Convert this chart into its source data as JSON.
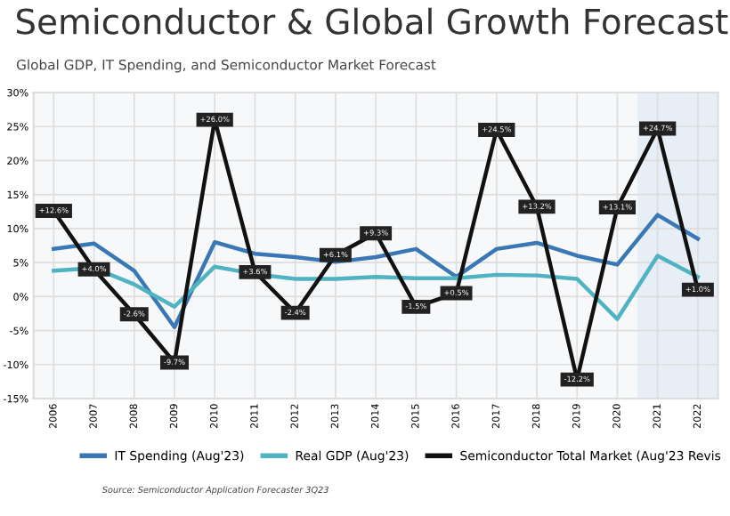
{
  "chart_data": {
    "type": "line",
    "title": "Semiconductor & Global Growth Forecast",
    "subtitle": "Global GDP, IT Spending, and Semiconductor Market Forecast",
    "categories": [
      "2006",
      "2007",
      "2008",
      "2009",
      "2010",
      "2011",
      "2012",
      "2013",
      "2014",
      "2015",
      "2016",
      "2017",
      "2018",
      "2019",
      "2020",
      "2021",
      "2022"
    ],
    "series": [
      {
        "name": "IT Spending (Aug'23)",
        "color": "#3a78b5",
        "values": [
          7.0,
          7.8,
          3.8,
          -4.5,
          8.0,
          6.3,
          5.8,
          5.1,
          5.8,
          7.0,
          2.9,
          7.0,
          7.9,
          6.0,
          4.7,
          12.0,
          8.5
        ]
      },
      {
        "name": "Real GDP (Aug'23)",
        "color": "#4fb3c2",
        "values": [
          3.8,
          4.2,
          1.8,
          -1.5,
          4.4,
          3.3,
          2.6,
          2.6,
          2.9,
          2.7,
          2.7,
          3.2,
          3.1,
          2.6,
          -3.3,
          6.0,
          2.9
        ]
      },
      {
        "name": "Semiconductor Total Market (Aug'23 Revis",
        "color": "#111111",
        "marker": "square",
        "values": [
          12.6,
          4.0,
          -2.6,
          -9.7,
          26.0,
          3.6,
          -2.4,
          6.1,
          9.3,
          -1.5,
          0.5,
          24.5,
          13.2,
          -12.2,
          13.1,
          24.7,
          1.0
        ],
        "value_labels": [
          "+12.6%",
          "+4.0%",
          "-2.6%",
          "-9.7%",
          "+26.0%",
          "+3.6%",
          "-2.4%",
          "+6.1%",
          "+9.3%",
          "-1.5%",
          "+0.5%",
          "+24.5%",
          "+13.2%",
          "-12.2%",
          "+13.1%",
          "+24.7%",
          "+1.0%"
        ]
      }
    ],
    "ylim": [
      -15,
      30
    ],
    "yticks": [
      {
        "value": -15,
        "label": "-15%"
      },
      {
        "value": -10,
        "label": "-10%"
      },
      {
        "value": -5,
        "label": "-5%"
      },
      {
        "value": 0,
        "label": "0%"
      },
      {
        "value": 5,
        "label": "5%"
      },
      {
        "value": 10,
        "label": "10%"
      },
      {
        "value": 15,
        "label": "15%"
      },
      {
        "value": 20,
        "label": "20%"
      },
      {
        "value": 25,
        "label": "25%"
      },
      {
        "value": 30,
        "label": "30%"
      }
    ],
    "bands": [
      {
        "axis": "x",
        "from": "2021",
        "to": "2022",
        "color": "#e8eef6"
      }
    ],
    "grid": true,
    "legend": "bottom",
    "line_style": "solid",
    "annotations": [
      "Source: Semiconductor Application Forecaster 3Q23"
    ]
  }
}
